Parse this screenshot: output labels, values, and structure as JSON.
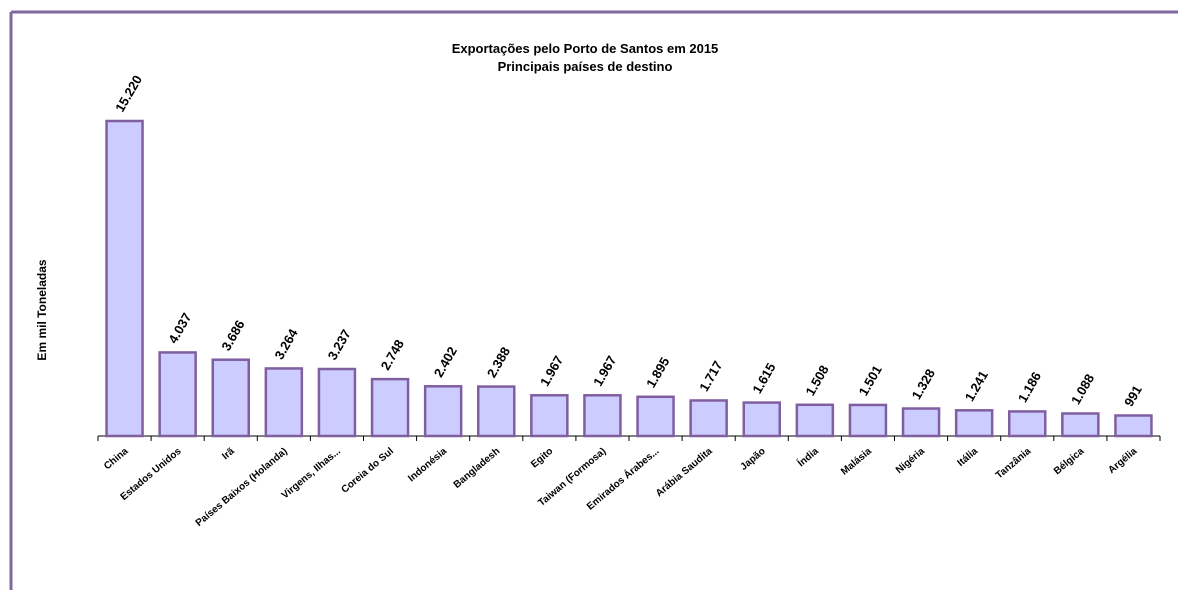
{
  "chart_data": {
    "type": "bar",
    "title": "Exportações pelo Porto de Santos em 2015",
    "subtitle": "Principais países de destino",
    "y_label": "Em  mil Toneladas",
    "categories": [
      "China",
      "Estados Unidos",
      "Irã",
      "Países Baixos (Holanda)",
      "Virgens, Ilhas...",
      "Coreia do Sul",
      "Indonésia",
      "Bangladesh",
      "Egito",
      "Taiwan (Formosa)",
      "Emirados Árabes...",
      "Arábia Saudita",
      "Japão",
      "Índia",
      "Malásia",
      "Nigéria",
      "Itália",
      "Tanzânia",
      "Bélgica",
      "Argélia"
    ],
    "values": [
      15220,
      4037,
      3686,
      3264,
      3237,
      2748,
      2402,
      2388,
      1967,
      1967,
      1895,
      1717,
      1615,
      1508,
      1501,
      1328,
      1241,
      1186,
      1088,
      991
    ],
    "value_labels": [
      "15.220",
      "4.037",
      "3.686",
      "3.264",
      "3.237",
      "2.748",
      "2.402",
      "2.388",
      "1.967",
      "1.967",
      "1.895",
      "1.717",
      "1.615",
      "1.508",
      "1.501",
      "1.328",
      "1.241",
      "1.186",
      "1.088",
      "991"
    ],
    "color": "#ccccff"
  }
}
